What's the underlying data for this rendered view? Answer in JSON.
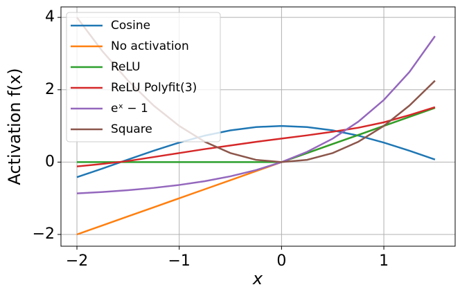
{
  "chart_data": {
    "type": "line",
    "xlabel": "x",
    "ylabel": "Activation f(x)",
    "x": [
      -2,
      -1.75,
      -1.5,
      -1.25,
      -1,
      -0.75,
      -0.5,
      -0.25,
      0,
      0.25,
      0.5,
      0.75,
      1,
      1.25,
      1.5
    ],
    "series": [
      {
        "name": "Cosine",
        "color": "#1f77b4",
        "values": [
          -0.416,
          -0.178,
          0.071,
          0.315,
          0.54,
          0.732,
          0.878,
          0.969,
          1,
          0.969,
          0.878,
          0.732,
          0.54,
          0.315,
          0.071
        ]
      },
      {
        "name": "No activation",
        "color": "#ff7f0e",
        "values": [
          -2,
          -1.75,
          -1.5,
          -1.25,
          -1,
          -0.75,
          -0.5,
          -0.25,
          0,
          0.25,
          0.5,
          0.75,
          1,
          1.25,
          1.5
        ]
      },
      {
        "name": "ReLU",
        "color": "#2ca02c",
        "values": [
          0,
          0,
          0,
          0,
          0,
          0,
          0,
          0,
          0,
          0.25,
          0.5,
          0.75,
          1,
          1.25,
          1.5
        ]
      },
      {
        "name": "ReLU Polyfit(3)",
        "color": "#d62728",
        "values": [
          -0.12,
          -0.05,
          0.03,
          0.14,
          0.25,
          0.36,
          0.46,
          0.56,
          0.65,
          0.74,
          0.84,
          0.95,
          1.1,
          1.3,
          1.52
        ]
      },
      {
        "name": "eˣ − 1",
        "color": "#9467bd",
        "values": [
          -0.865,
          -0.826,
          -0.777,
          -0.713,
          -0.632,
          -0.528,
          -0.393,
          -0.221,
          0,
          0.284,
          0.649,
          1.117,
          1.718,
          2.49,
          3.482
        ]
      },
      {
        "name": "Square",
        "color": "#8c564b",
        "values": [
          4,
          3.0625,
          2.25,
          1.5625,
          1,
          0.5625,
          0.25,
          0.0625,
          0,
          0.0625,
          0.25,
          0.5625,
          1,
          1.5625,
          2.25
        ]
      }
    ],
    "xlim": [
      -2.156,
      1.697
    ],
    "ylim": [
      -2.325,
      4.29
    ],
    "xticks": [
      {
        "value": -2,
        "label": "−2"
      },
      {
        "value": -1,
        "label": "−1"
      },
      0,
      1
    ],
    "yticks": [
      {
        "value": -2,
        "label": "−2"
      },
      0,
      2,
      4
    ],
    "grid": true,
    "legend": "upper-left"
  }
}
